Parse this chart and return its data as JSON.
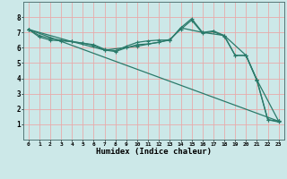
{
  "background_color": "#cce8e8",
  "grid_color": "#e8aaaa",
  "line_color": "#2a7a6a",
  "xlabel": "Humidex (Indice chaleur)",
  "xlim": [
    -0.5,
    23.5
  ],
  "ylim": [
    0,
    9
  ],
  "xticks": [
    0,
    1,
    2,
    3,
    4,
    5,
    6,
    7,
    8,
    9,
    10,
    11,
    12,
    13,
    14,
    15,
    16,
    17,
    18,
    19,
    20,
    21,
    22,
    23
  ],
  "yticks": [
    1,
    2,
    3,
    4,
    5,
    6,
    7,
    8
  ],
  "line1": {
    "x": [
      0,
      1,
      2,
      3,
      4,
      5,
      6,
      7,
      8,
      9,
      10,
      11,
      12,
      13,
      14,
      15,
      16,
      17,
      18,
      19,
      20,
      21,
      22,
      23
    ],
    "y": [
      7.2,
      6.8,
      6.6,
      6.5,
      6.4,
      6.3,
      6.2,
      5.9,
      5.8,
      6.1,
      6.35,
      6.45,
      6.5,
      6.5,
      7.3,
      7.9,
      7.0,
      7.1,
      6.8,
      5.5,
      5.5,
      3.9,
      1.3,
      1.2
    ]
  },
  "line2": {
    "x": [
      0,
      1,
      2,
      3,
      4,
      5,
      6,
      7,
      8,
      9,
      10,
      11,
      12,
      13,
      14,
      15,
      16,
      17,
      18,
      19,
      20,
      21,
      22,
      23
    ],
    "y": [
      7.2,
      6.7,
      6.5,
      6.45,
      6.4,
      6.3,
      6.15,
      5.85,
      5.75,
      6.0,
      6.2,
      6.25,
      6.35,
      6.55,
      7.2,
      7.8,
      6.95,
      7.05,
      6.75,
      5.5,
      5.5,
      3.85,
      1.3,
      1.15
    ]
  },
  "line3": {
    "x": [
      0,
      4,
      7,
      10,
      13,
      14,
      16,
      18,
      20,
      21,
      23
    ],
    "y": [
      7.2,
      6.4,
      5.85,
      6.1,
      6.5,
      7.3,
      7.0,
      6.8,
      5.5,
      3.9,
      1.2
    ]
  },
  "line4": {
    "x": [
      0,
      23
    ],
    "y": [
      7.2,
      1.2
    ]
  }
}
